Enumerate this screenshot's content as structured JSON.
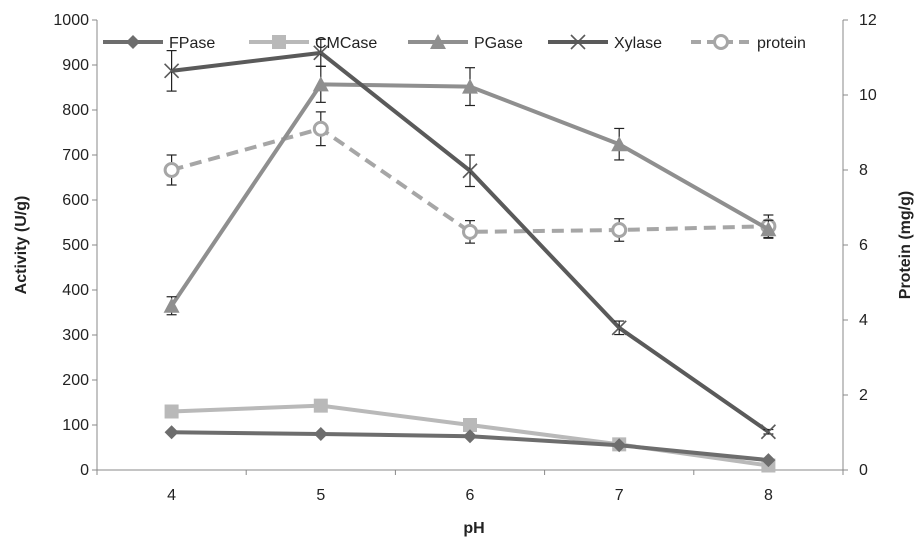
{
  "chart_data": {
    "type": "line",
    "categories": [
      "4",
      "5",
      "6",
      "7",
      "8"
    ],
    "xlabel": "pH",
    "ylabel": "Activity (U/g)",
    "y2label": "Protein (mg/g)",
    "ylim": [
      0,
      1000
    ],
    "y2lim": [
      0,
      12
    ],
    "yticks": [
      "0",
      "100",
      "200",
      "300",
      "400",
      "500",
      "600",
      "700",
      "800",
      "900",
      "1000"
    ],
    "y2ticks": [
      "0",
      "2",
      "4",
      "6",
      "8",
      "10",
      "12"
    ],
    "grid": false,
    "legend_position": "top",
    "series": [
      {
        "name": "FPase",
        "axis": "left",
        "marker": "diamond",
        "color": "#6d6d6d",
        "dashed": false,
        "values": [
          84,
          80,
          75,
          55,
          22
        ],
        "errors": [
          0,
          0,
          0,
          0,
          0
        ]
      },
      {
        "name": "CMCase",
        "axis": "left",
        "marker": "square",
        "color": "#b9b9b9",
        "dashed": false,
        "values": [
          130,
          143,
          100,
          57,
          10
        ],
        "errors": [
          0,
          0,
          0,
          0,
          0
        ]
      },
      {
        "name": "PGase",
        "axis": "left",
        "marker": "triangle",
        "color": "#8f8f8f",
        "dashed": false,
        "values": [
          365,
          857,
          852,
          724,
          535
        ],
        "errors": [
          20,
          40,
          42,
          35,
          20
        ]
      },
      {
        "name": "Xylase",
        "axis": "left",
        "marker": "x",
        "color": "#5a5a5a",
        "dashed": false,
        "values": [
          887,
          927,
          665,
          316,
          85
        ],
        "errors": [
          45,
          30,
          35,
          15,
          5
        ]
      },
      {
        "name": "protein",
        "axis": "right",
        "marker": "circle",
        "color": "#a6a6a6",
        "dashed": true,
        "values": [
          8.0,
          9.1,
          6.35,
          6.4,
          6.5
        ],
        "errors": [
          0.4,
          0.45,
          0.3,
          0.3,
          0.3
        ]
      }
    ]
  }
}
